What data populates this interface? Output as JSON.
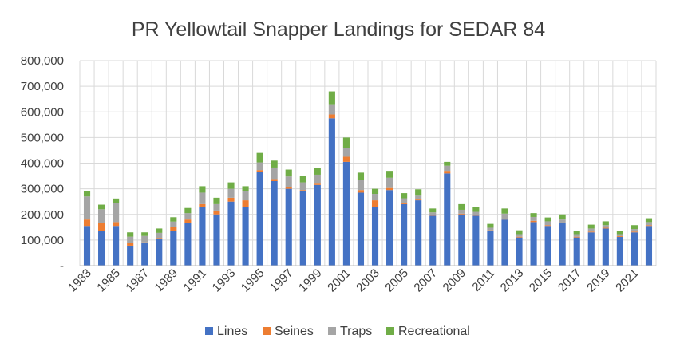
{
  "chart_data": {
    "type": "bar",
    "stacked": true,
    "title": "PR Yellowtail Snapper Landings for SEDAR 84",
    "xlabel": "",
    "ylabel": "",
    "ylim": [
      0,
      800000
    ],
    "yticks": [
      0,
      100000,
      200000,
      300000,
      400000,
      500000,
      600000,
      700000,
      800000
    ],
    "ytick_labels": [
      "-",
      "100,000",
      "200,000",
      "300,000",
      "400,000",
      "500,000",
      "600,000",
      "700,000",
      "800,000"
    ],
    "grid": true,
    "legend_position": "bottom",
    "categories": [
      "1983",
      "1984",
      "1985",
      "1986",
      "1987",
      "1988",
      "1989",
      "1990",
      "1991",
      "1992",
      "1993",
      "1994",
      "1995",
      "1996",
      "1997",
      "1998",
      "1999",
      "2000",
      "2001",
      "2002",
      "2003",
      "2004",
      "2005",
      "2006",
      "2007",
      "2008",
      "2009",
      "2010",
      "2011",
      "2012",
      "2013",
      "2014",
      "2015",
      "2016",
      "2017",
      "2018",
      "2019",
      "2020",
      "2021",
      "2022"
    ],
    "xtick_labels": [
      "1983",
      "1985",
      "1987",
      "1989",
      "1991",
      "1993",
      "1995",
      "1997",
      "1999",
      "2001",
      "2003",
      "2005",
      "2007",
      "2009",
      "2011",
      "2013",
      "2015",
      "2017",
      "2019",
      "2021"
    ],
    "series": [
      {
        "name": "Lines",
        "color": "#4472C4",
        "values": [
          155000,
          135000,
          155000,
          78000,
          88000,
          105000,
          135000,
          165000,
          230000,
          200000,
          250000,
          230000,
          365000,
          330000,
          300000,
          290000,
          315000,
          575000,
          405000,
          285000,
          230000,
          295000,
          240000,
          255000,
          195000,
          360000,
          200000,
          195000,
          135000,
          180000,
          110000,
          170000,
          155000,
          165000,
          110000,
          130000,
          145000,
          112000,
          130000,
          155000
        ]
      },
      {
        "name": "Seines",
        "color": "#ED7D31",
        "values": [
          25000,
          30000,
          15000,
          10000,
          3000,
          3000,
          15000,
          15000,
          10000,
          15000,
          15000,
          25000,
          8000,
          8000,
          8000,
          5000,
          5000,
          15000,
          20000,
          10000,
          25000,
          8000,
          3000,
          3000,
          3000,
          10000,
          3000,
          3000,
          3000,
          3000,
          3000,
          5000,
          3000,
          3000,
          3000,
          3000,
          3000,
          3000,
          3000,
          3000
        ]
      },
      {
        "name": "Traps",
        "color": "#A5A5A5",
        "values": [
          90000,
          55000,
          75000,
          25000,
          25000,
          20000,
          22000,
          25000,
          45000,
          25000,
          35000,
          35000,
          30000,
          45000,
          40000,
          30000,
          35000,
          40000,
          35000,
          40000,
          25000,
          40000,
          20000,
          15000,
          10000,
          20000,
          15000,
          12000,
          10000,
          20000,
          10000,
          15000,
          15000,
          12000,
          10000,
          12000,
          10000,
          8000,
          10000,
          12000
        ]
      },
      {
        "name": "Recreational",
        "color": "#70AD47",
        "values": [
          20000,
          18000,
          17000,
          17000,
          14000,
          17000,
          17000,
          20000,
          25000,
          25000,
          25000,
          20000,
          37000,
          27000,
          27000,
          25000,
          27000,
          50000,
          40000,
          28000,
          20000,
          27000,
          20000,
          25000,
          15000,
          15000,
          22000,
          20000,
          15000,
          20000,
          15000,
          15000,
          15000,
          20000,
          12000,
          15000,
          15000,
          12000,
          15000,
          15000
        ]
      }
    ]
  }
}
